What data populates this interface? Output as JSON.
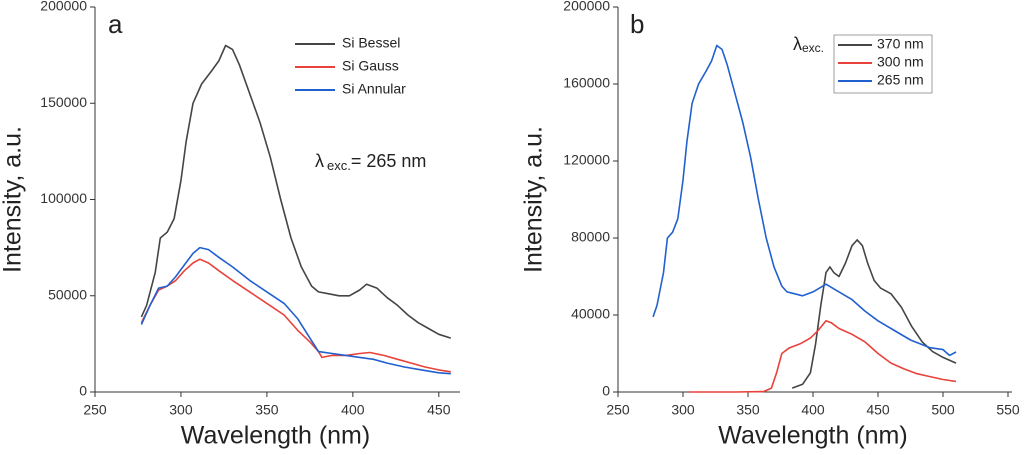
{
  "chart_data": [
    {
      "type": "line",
      "panel_label": "a",
      "xlabel": "Wavelength (nm)",
      "ylabel": "Intensity, a.u.",
      "xlim": [
        250,
        460
      ],
      "xticks": [
        250,
        300,
        350,
        400,
        450
      ],
      "ylim": [
        0,
        200000
      ],
      "yticks": [
        0,
        50000,
        100000,
        150000,
        200000
      ],
      "legend": "upper right",
      "annotation": {
        "symbol": "λ",
        "subscript": "exc.",
        "text": "= 265 nm"
      },
      "series": [
        {
          "name": "Si Bessel",
          "color": "#454545",
          "x": [
            277,
            280,
            285,
            288,
            292,
            296,
            300,
            303,
            307,
            312,
            318,
            322,
            326,
            330,
            334,
            340,
            346,
            352,
            358,
            364,
            370,
            376,
            380,
            386,
            392,
            398,
            404,
            408,
            414,
            420,
            426,
            432,
            438,
            444,
            450,
            457
          ],
          "y": [
            39000,
            45000,
            62000,
            80000,
            83000,
            90000,
            110000,
            130000,
            150000,
            160000,
            167000,
            172000,
            180000,
            178000,
            170000,
            155000,
            140000,
            122000,
            100000,
            80000,
            65000,
            55000,
            52000,
            51000,
            50000,
            50000,
            53000,
            56000,
            54000,
            49000,
            45000,
            40000,
            36000,
            33000,
            30000,
            28000
          ]
        },
        {
          "name": "Si Gauss",
          "color": "#e8423a",
          "x": [
            277,
            282,
            287,
            292,
            297,
            302,
            307,
            311,
            316,
            322,
            330,
            340,
            350,
            360,
            368,
            375,
            380,
            382,
            388,
            396,
            404,
            410,
            418,
            426,
            434,
            442,
            450,
            457
          ],
          "y": [
            36000,
            45000,
            53000,
            55000,
            58000,
            63000,
            67000,
            69000,
            67000,
            63000,
            58000,
            52000,
            46000,
            40000,
            32000,
            26000,
            21000,
            18000,
            19000,
            19000,
            20000,
            20500,
            19000,
            17000,
            15000,
            13000,
            11500,
            10500
          ]
        },
        {
          "name": "Si Annular",
          "color": "#2160cf",
          "x": [
            277,
            282,
            287,
            292,
            297,
            302,
            307,
            311,
            316,
            322,
            330,
            340,
            350,
            360,
            368,
            375,
            380,
            388,
            396,
            404,
            412,
            420,
            430,
            440,
            450,
            457
          ],
          "y": [
            35000,
            45000,
            54000,
            55000,
            60000,
            66000,
            72000,
            75000,
            74000,
            70000,
            65000,
            58000,
            52000,
            46000,
            38000,
            28000,
            21000,
            20000,
            19000,
            18000,
            17000,
            15000,
            13000,
            11500,
            10000,
            9500
          ]
        }
      ]
    },
    {
      "type": "line",
      "panel_label": "b",
      "xlabel": "Wavelength (nm)",
      "ylabel": "Intensity, a.u.",
      "xlim": [
        250,
        550
      ],
      "xticks": [
        250,
        300,
        350,
        400,
        450,
        500,
        550
      ],
      "ylim": [
        0,
        200000
      ],
      "yticks": [
        0,
        40000,
        80000,
        120000,
        160000,
        200000
      ],
      "legend": "upper right",
      "legend_title": {
        "symbol": "λ",
        "subscript": "exc."
      },
      "series": [
        {
          "name": "370 nm",
          "color": "#454545",
          "x": [
            384,
            392,
            398,
            402,
            406,
            410,
            413,
            416,
            420,
            425,
            430,
            434,
            438,
            442,
            447,
            452,
            460,
            468,
            476,
            484,
            492,
            500,
            510
          ],
          "y": [
            2000,
            4000,
            10000,
            25000,
            45000,
            62000,
            65000,
            62000,
            60000,
            67000,
            76000,
            79000,
            76000,
            67000,
            58000,
            54000,
            51000,
            44000,
            34000,
            26000,
            21000,
            18000,
            15000
          ]
        },
        {
          "name": "300 nm",
          "color": "#e8423a",
          "x": [
            305,
            340,
            362,
            368,
            372,
            376,
            382,
            390,
            398,
            404,
            410,
            414,
            420,
            430,
            440,
            450,
            460,
            470,
            480,
            490,
            500,
            510
          ],
          "y": [
            0,
            0,
            200,
            2000,
            10000,
            20000,
            23000,
            25000,
            28000,
            32000,
            37000,
            36000,
            33000,
            30000,
            26000,
            20000,
            15000,
            12000,
            9500,
            8000,
            6500,
            5500
          ]
        },
        {
          "name": "265 nm",
          "color": "#2160cf",
          "x": [
            277,
            280,
            285,
            288,
            292,
            296,
            300,
            303,
            307,
            312,
            318,
            322,
            326,
            330,
            334,
            340,
            346,
            352,
            358,
            364,
            370,
            376,
            380,
            386,
            392,
            400,
            410,
            420,
            430,
            440,
            450,
            460,
            475,
            490,
            500,
            505,
            510
          ],
          "y": [
            39000,
            45000,
            62000,
            80000,
            83000,
            90000,
            110000,
            130000,
            150000,
            160000,
            167000,
            172000,
            180000,
            178000,
            170000,
            155000,
            140000,
            122000,
            100000,
            80000,
            65000,
            55000,
            52000,
            51000,
            50000,
            52000,
            56000,
            52000,
            48000,
            42000,
            37000,
            33000,
            27000,
            23000,
            22000,
            19000,
            20800
          ]
        }
      ]
    }
  ]
}
